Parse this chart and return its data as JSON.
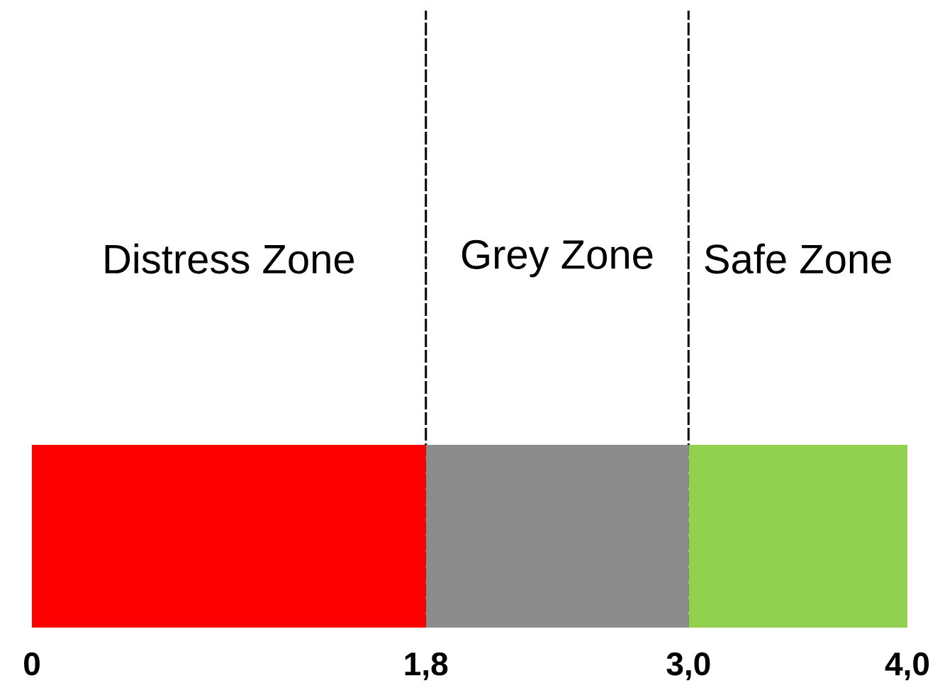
{
  "chart_data": {
    "type": "bar",
    "orientation": "horizontal",
    "stacked": true,
    "categories": [
      null
    ],
    "series": [
      {
        "color": "#ff0000",
        "values": [
          1.8
        ]
      },
      {
        "color": "#8c8c8c",
        "values": [
          1.2
        ]
      },
      {
        "color": "#92d050",
        "values": [
          1.0
        ]
      }
    ],
    "annotations": [
      "Distress Zone",
      "Grey Zone",
      "Safe Zone"
    ],
    "xlim": [
      0,
      4
    ],
    "xticks": [
      0,
      {
        "value": 1.8,
        "label": "1,8"
      },
      {
        "value": 3,
        "label": "3,0"
      },
      {
        "value": 4,
        "label": "4,0"
      }
    ],
    "ref_lines": [
      {
        "axis": "x",
        "value": 1.8,
        "color": "#000000",
        "line_style": "dashed"
      },
      {
        "axis": "x",
        "value": 3,
        "color": "#000000",
        "line_style": "dashed"
      }
    ]
  }
}
